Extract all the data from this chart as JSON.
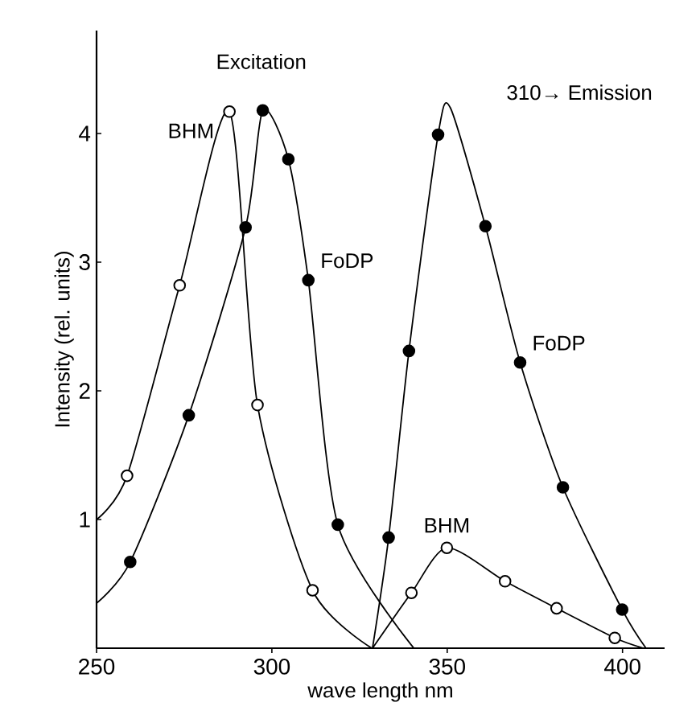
{
  "chart_data": {
    "type": "line",
    "xlabel": "wave length nm",
    "ylabel": "Intensity (rel. units)",
    "xlim": [
      250,
      412
    ],
    "ylim": [
      0,
      4.8
    ],
    "xticks": [
      250,
      300,
      350,
      400
    ],
    "yticks": [
      1,
      2,
      3,
      4
    ],
    "grid": false,
    "annotations": [
      "Excitation",
      "310→ Emission"
    ],
    "series": [
      {
        "name": "BHM",
        "color": "#000000",
        "marker": "none",
        "x": [
          250,
          258.7,
          273.7,
          287.9,
          295.9,
          311.6,
          328.5
        ],
        "values": [
          1.0,
          1.34,
          2.82,
          4.17,
          1.89,
          0.45,
          0
        ]
      },
      {
        "type": "scatter",
        "color": "#ffffff",
        "marker": "circle",
        "x": [
          258.7,
          273.7,
          287.9,
          295.9,
          311.6
        ],
        "values": [
          1.34,
          2.82,
          4.17,
          1.89,
          0.45
        ]
      },
      {
        "name": "FoDP",
        "color": "#000000",
        "marker": "none",
        "x": [
          250,
          259.6,
          276.3,
          292.5,
          297.4,
          304.7,
          310.4,
          318.8,
          340.5
        ],
        "values": [
          0.35,
          0.67,
          1.81,
          3.27,
          4.18,
          3.8,
          2.86,
          0.96,
          0
        ]
      },
      {
        "type": "scatter",
        "color": "#000000",
        "marker": "circle",
        "x": [
          259.6,
          276.3,
          292.5,
          297.4,
          304.7,
          310.4,
          318.8
        ],
        "values": [
          0.67,
          1.81,
          3.27,
          4.18,
          3.8,
          2.86,
          0.96
        ]
      },
      {
        "name": "FoDP",
        "color": "#000000",
        "marker": "none",
        "x": [
          328.7,
          333.3,
          339.1,
          347.4,
          350.9,
          360.9,
          370.8,
          383.0,
          399.9,
          406.7
        ],
        "values": [
          0,
          0.86,
          2.31,
          3.99,
          4.2,
          3.28,
          2.22,
          1.25,
          0.3,
          0
        ]
      },
      {
        "type": "scatter",
        "color": "#000000",
        "marker": "circle",
        "x": [
          333.3,
          339.1,
          347.4,
          360.9,
          370.8,
          383.0,
          399.9
        ],
        "values": [
          0.86,
          2.31,
          3.99,
          3.28,
          2.22,
          1.25,
          0.3
        ]
      },
      {
        "name": "BHM",
        "color": "#000000",
        "marker": "none",
        "x": [
          328.7,
          339.8,
          349.9,
          366.5,
          381.2,
          397.8,
          406.0
        ],
        "values": [
          0,
          0.43,
          0.78,
          0.52,
          0.31,
          0.08,
          0
        ]
      },
      {
        "type": "scatter",
        "color": "#ffffff",
        "marker": "circle",
        "x": [
          339.8,
          349.9,
          366.5,
          381.2,
          397.8
        ],
        "values": [
          0.43,
          0.78,
          0.52,
          0.31,
          0.08
        ]
      }
    ]
  }
}
